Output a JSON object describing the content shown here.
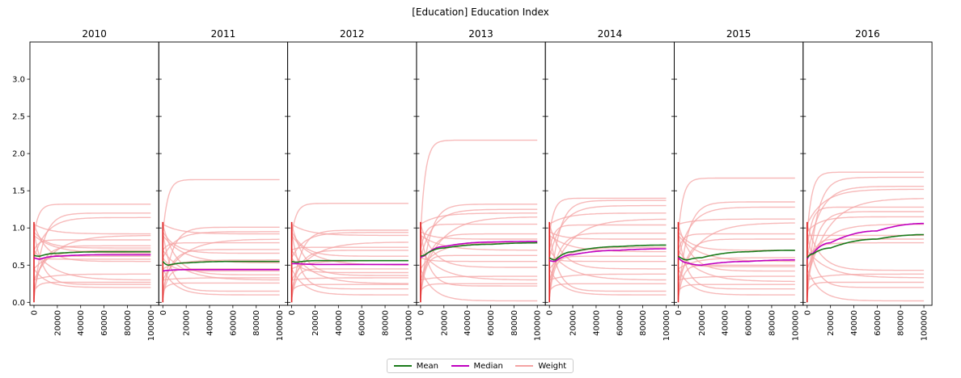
{
  "figure": {
    "title": "[Education] Education Index"
  },
  "legend": {
    "items": [
      {
        "label": "Mean",
        "color": "#1a7a1a"
      },
      {
        "label": "Median",
        "color": "#c000c0"
      },
      {
        "label": "Weight",
        "color": "#f4a3a3"
      }
    ]
  },
  "chart_data": {
    "type": "line",
    "layout": "small-multiples",
    "panels": [
      "2010",
      "2011",
      "2012",
      "2013",
      "2014",
      "2015",
      "2016"
    ],
    "xlim": [
      0,
      100000
    ],
    "ylim": [
      0,
      3.5
    ],
    "xticks": [
      0,
      20000,
      40000,
      60000,
      80000,
      100000
    ],
    "yticks": [
      0.0,
      0.5,
      1.0,
      1.5,
      2.0,
      2.5,
      3.0
    ],
    "xtick_labels": [
      "0",
      "20000",
      "40000",
      "60000",
      "80000",
      "100000"
    ],
    "ytick_labels": [
      "0.0",
      "0.5",
      "1.0",
      "1.5",
      "2.0",
      "2.5",
      "3.0"
    ],
    "grid": false,
    "legend_position": "bottom-center",
    "mean": [
      {
        "panel": "2010",
        "x": [
          0,
          5000,
          20000,
          60000,
          100000
        ],
        "y": [
          0.63,
          0.62,
          0.66,
          0.68,
          0.68
        ]
      },
      {
        "panel": "2011",
        "x": [
          0,
          5000,
          20000,
          60000,
          100000
        ],
        "y": [
          0.55,
          0.5,
          0.53,
          0.55,
          0.55
        ]
      },
      {
        "panel": "2012",
        "x": [
          0,
          5000,
          20000,
          60000,
          100000
        ],
        "y": [
          0.55,
          0.54,
          0.56,
          0.56,
          0.56
        ]
      },
      {
        "panel": "2013",
        "x": [
          0,
          3000,
          20000,
          60000,
          100000
        ],
        "y": [
          0.62,
          0.63,
          0.73,
          0.78,
          0.8
        ]
      },
      {
        "panel": "2014",
        "x": [
          0,
          5000,
          20000,
          60000,
          100000
        ],
        "y": [
          0.6,
          0.57,
          0.68,
          0.75,
          0.77
        ]
      },
      {
        "panel": "2015",
        "x": [
          0,
          8000,
          20000,
          60000,
          100000
        ],
        "y": [
          0.62,
          0.57,
          0.6,
          0.68,
          0.7
        ]
      },
      {
        "panel": "2016",
        "x": [
          0,
          5000,
          20000,
          60000,
          100000
        ],
        "y": [
          0.6,
          0.65,
          0.73,
          0.85,
          0.91
        ]
      }
    ],
    "median": [
      {
        "panel": "2010",
        "x": [
          0,
          5000,
          20000,
          60000,
          100000
        ],
        "y": [
          0.6,
          0.58,
          0.62,
          0.64,
          0.64
        ]
      },
      {
        "panel": "2011",
        "x": [
          0,
          5000,
          20000,
          60000,
          100000
        ],
        "y": [
          0.42,
          0.43,
          0.44,
          0.44,
          0.44
        ]
      },
      {
        "panel": "2012",
        "x": [
          0,
          5000,
          20000,
          60000,
          100000
        ],
        "y": [
          0.52,
          0.52,
          0.51,
          0.51,
          0.51
        ]
      },
      {
        "panel": "2013",
        "x": [
          0,
          3000,
          20000,
          60000,
          100000
        ],
        "y": [
          0.6,
          0.62,
          0.75,
          0.81,
          0.82
        ]
      },
      {
        "panel": "2014",
        "x": [
          0,
          5000,
          20000,
          60000,
          100000
        ],
        "y": [
          0.56,
          0.55,
          0.64,
          0.7,
          0.72
        ]
      },
      {
        "panel": "2015",
        "x": [
          0,
          8000,
          20000,
          60000,
          100000
        ],
        "y": [
          0.6,
          0.53,
          0.5,
          0.55,
          0.57
        ]
      },
      {
        "panel": "2016",
        "x": [
          0,
          5000,
          20000,
          60000,
          100000
        ],
        "y": [
          0.58,
          0.66,
          0.8,
          0.96,
          1.06
        ]
      }
    ],
    "weight": [
      {
        "panel": "2010",
        "finals": [
          1.32,
          1.2,
          1.14,
          0.92,
          0.9,
          0.84,
          0.76,
          0.73,
          0.7,
          0.66,
          0.62,
          0.58,
          0.55,
          0.38,
          0.3,
          0.27,
          0.24,
          0.2
        ]
      },
      {
        "panel": "2011",
        "finals": [
          1.65,
          1.01,
          0.95,
          0.92,
          0.85,
          0.8,
          0.71,
          0.66,
          0.57,
          0.53,
          0.45,
          0.42,
          0.37,
          0.33,
          0.3,
          0.26,
          0.15,
          0.1
        ]
      },
      {
        "panel": "2012",
        "finals": [
          1.33,
          0.97,
          0.94,
          0.9,
          0.81,
          0.74,
          0.7,
          0.62,
          0.56,
          0.5,
          0.45,
          0.4,
          0.36,
          0.33,
          0.25,
          0.24,
          0.18,
          0.1
        ]
      },
      {
        "panel": "2013",
        "finals": [
          2.18,
          1.32,
          1.25,
          1.2,
          1.15,
          1.05,
          0.92,
          0.85,
          0.8,
          0.7,
          0.63,
          0.55,
          0.47,
          0.35,
          0.3,
          0.25,
          0.22,
          0.02
        ]
      },
      {
        "panel": "2014",
        "finals": [
          1.4,
          1.37,
          1.3,
          1.2,
          1.12,
          1.04,
          0.93,
          0.85,
          0.74,
          0.68,
          0.62,
          0.55,
          0.45,
          0.38,
          0.3,
          0.25,
          0.15,
          0.1
        ]
      },
      {
        "panel": "2015",
        "finals": [
          1.67,
          1.35,
          1.28,
          1.12,
          1.07,
          0.92,
          0.85,
          0.7,
          0.6,
          0.55,
          0.5,
          0.48,
          0.42,
          0.35,
          0.28,
          0.24,
          0.18,
          0.1
        ]
      },
      {
        "panel": "2016",
        "finals": [
          1.75,
          1.68,
          1.56,
          1.52,
          1.4,
          1.28,
          1.22,
          1.15,
          1.05,
          0.9,
          0.85,
          0.8,
          0.43,
          0.38,
          0.33,
          0.27,
          0.2,
          0.02
        ]
      }
    ]
  }
}
